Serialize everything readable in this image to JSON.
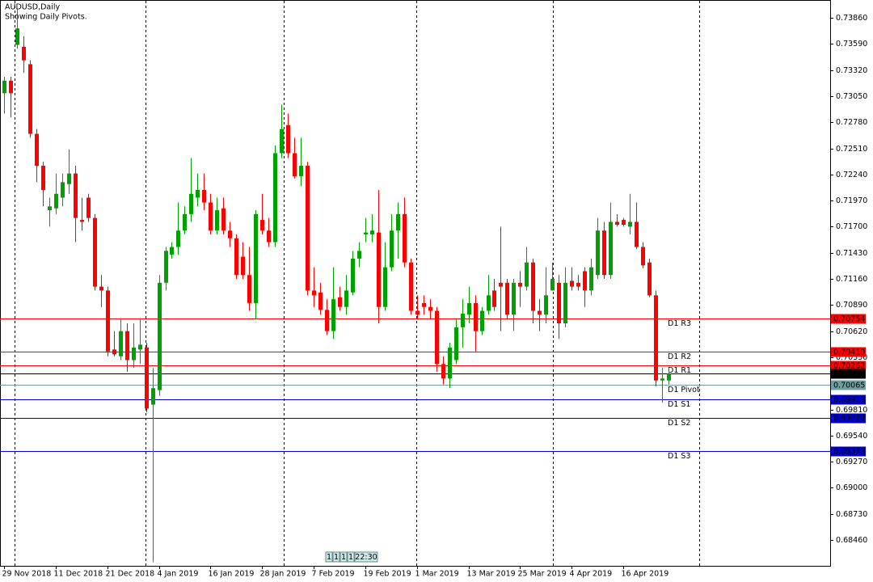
{
  "chart_data": {
    "type": "candlestick",
    "title": "AUDUSD,Daily",
    "subtitle": "Showing Daily Pivots.",
    "categories": [
      "29 Nov 2018",
      null,
      null,
      null,
      null,
      null,
      null,
      null,
      "11 Dec 2018",
      null,
      null,
      null,
      null,
      null,
      null,
      null,
      "21 Dec 2018",
      null,
      null,
      null,
      null,
      null,
      null,
      null,
      "4 Jan 2019",
      null,
      null,
      null,
      null,
      null,
      null,
      null,
      "16 Jan 2019",
      null,
      null,
      null,
      null,
      null,
      null,
      null,
      "28 Jan 2019",
      null,
      null,
      null,
      null,
      null,
      null,
      null,
      "7 Feb 2019",
      null,
      null,
      null,
      null,
      null,
      null,
      null,
      "19 Feb 2019",
      null,
      null,
      null,
      null,
      null,
      null,
      null,
      "1 Mar 2019",
      null,
      null,
      null,
      null,
      null,
      null,
      null,
      "13 Mar 2019",
      null,
      null,
      null,
      null,
      null,
      null,
      null,
      "25 Mar 2019",
      null,
      null,
      null,
      null,
      null,
      null,
      null,
      "4 Apr 2019",
      null,
      null,
      null,
      null,
      null,
      null,
      null,
      "16 Apr 2019",
      null,
      null,
      null,
      null,
      null,
      null,
      null
    ],
    "open": [
      0.7308,
      0.7321,
      0.7358,
      0.7356,
      0.7338,
      0.7266,
      0.7233,
      0.7187,
      0.7189,
      0.72,
      0.7214,
      0.7225,
      0.7177,
      0.72,
      0.7179,
      0.7108,
      0.7104,
      0.7043,
      0.7036,
      0.7062,
      0.7032,
      0.7043,
      0.7045,
      0.6986,
      0.7001,
      0.7112,
      0.7141,
      0.7149,
      0.7166,
      0.7183,
      0.72,
      0.7208,
      0.7195,
      0.7166,
      0.7189,
      0.7166,
      0.7158,
      0.7139,
      0.712,
      0.7091,
      0.7177,
      0.7166,
      0.7154,
      0.7246,
      0.7275,
      0.7246,
      0.7222,
      0.7233,
      0.7104,
      0.7102,
      0.7084,
      0.7062,
      0.7097,
      0.7087,
      0.7102,
      0.7137,
      0.7162,
      0.7162,
      0.7164,
      0.7087,
      0.7128,
      0.7166,
      0.7183,
      0.7133,
      0.7083,
      0.7091,
      0.7087,
      0.7083,
      0.7028,
      0.7013,
      0.7032,
      0.7066,
      0.7079,
      0.7091,
      0.7062,
      0.7083,
      0.7104,
      0.7112,
      0.7112,
      0.7079,
      0.7112,
      0.7108,
      0.7133,
      0.7083,
      0.7079,
      0.7104,
      0.7112,
      0.707,
      0.7114,
      0.7112,
      0.7124,
      0.7104,
      0.712,
      0.7166,
      0.712,
      0.7175,
      0.7177,
      0.717,
      0.7175,
      0.7149,
      0.7133,
      0.7099,
      0.7011,
      0.7011
    ],
    "high": [
      0.7325,
      0.7325,
      0.7396,
      0.7367,
      0.7342,
      0.7271,
      0.7237,
      0.72,
      0.7225,
      0.7225,
      0.725,
      0.7233,
      0.72,
      0.7204,
      0.7183,
      0.712,
      0.7108,
      0.7062,
      0.7074,
      0.707,
      0.707,
      0.7074,
      0.705,
      0.7024,
      0.712,
      0.7149,
      0.7154,
      0.7195,
      0.7191,
      0.7241,
      0.7225,
      0.7225,
      0.7204,
      0.72,
      0.72,
      0.7175,
      0.7162,
      0.7154,
      0.7149,
      0.7187,
      0.7204,
      0.7179,
      0.7254,
      0.7296,
      0.7287,
      0.7262,
      0.7262,
      0.7237,
      0.7128,
      0.7112,
      0.7095,
      0.7128,
      0.7108,
      0.712,
      0.7145,
      0.7154,
      0.7179,
      0.7183,
      0.7208,
      0.7154,
      0.7183,
      0.7195,
      0.72,
      0.7137,
      0.7099,
      0.7099,
      0.7095,
      0.7087,
      0.7036,
      0.705,
      0.7074,
      0.7095,
      0.7108,
      0.7099,
      0.7087,
      0.712,
      0.7116,
      0.717,
      0.7116,
      0.7116,
      0.7124,
      0.7149,
      0.7137,
      0.7095,
      0.7128,
      0.7133,
      0.712,
      0.7128,
      0.7128,
      0.712,
      0.7128,
      0.7137,
      0.7179,
      0.7175,
      0.7195,
      0.7183,
      0.7179,
      0.7204,
      0.7195,
      0.7154,
      0.7137,
      0.7104,
      0.7024,
      0.7024
    ],
    "low": [
      0.7287,
      0.7283,
      0.7354,
      0.7329,
      0.7262,
      0.7216,
      0.7191,
      0.717,
      0.7183,
      0.7191,
      0.7204,
      0.7154,
      0.7166,
      0.7175,
      0.7104,
      0.7087,
      0.7036,
      0.7036,
      0.7032,
      0.702,
      0.7024,
      0.7028,
      0.6978,
      0.6823,
      0.6995,
      0.7104,
      0.7137,
      0.7141,
      0.7162,
      0.7175,
      0.7191,
      0.7187,
      0.7162,
      0.7162,
      0.7162,
      0.7149,
      0.7116,
      0.7116,
      0.7083,
      0.7074,
      0.7162,
      0.7149,
      0.7149,
      0.7241,
      0.7241,
      0.722,
      0.7212,
      0.7099,
      0.7087,
      0.7079,
      0.7058,
      0.7054,
      0.7083,
      0.7079,
      0.7099,
      0.7128,
      0.7154,
      0.7154,
      0.707,
      0.7083,
      0.7124,
      0.7137,
      0.7128,
      0.7079,
      0.7074,
      0.7079,
      0.7074,
      0.702,
      0.7007,
      0.7003,
      0.7028,
      0.7045,
      0.707,
      0.7041,
      0.7058,
      0.7079,
      0.7083,
      0.7062,
      0.7074,
      0.7062,
      0.7087,
      0.7104,
      0.707,
      0.7062,
      0.707,
      0.7104,
      0.7054,
      0.7066,
      0.7104,
      0.7104,
      0.7087,
      0.7099,
      0.7116,
      0.7116,
      0.7116,
      0.717,
      0.717,
      0.7162,
      0.7147,
      0.7127,
      0.7097,
      0.7005,
      0.6988,
      0.7007
    ],
    "close": [
      0.7321,
      0.7308,
      0.7375,
      0.7342,
      0.7266,
      0.7233,
      0.7208,
      0.7191,
      0.7204,
      0.7216,
      0.7225,
      0.7179,
      0.7175,
      0.7179,
      0.7108,
      0.7104,
      0.7041,
      0.7038,
      0.7062,
      0.7032,
      0.7045,
      0.7048,
      0.6982,
      0.7003,
      0.7112,
      0.7145,
      0.7149,
      0.7166,
      0.7183,
      0.7204,
      0.7208,
      0.7195,
      0.7166,
      0.7187,
      0.7166,
      0.7158,
      0.712,
      0.712,
      0.7091,
      0.7183,
      0.7166,
      0.7154,
      0.7246,
      0.7271,
      0.7246,
      0.7222,
      0.7233,
      0.7104,
      0.7099,
      0.7084,
      0.7062,
      0.7095,
      0.7087,
      0.7104,
      0.7137,
      0.7145,
      0.7164,
      0.7166,
      0.7087,
      0.7128,
      0.7166,
      0.7183,
      0.7133,
      0.7083,
      0.7079,
      0.7087,
      0.7083,
      0.7028,
      0.7013,
      0.7045,
      0.7066,
      0.708,
      0.7091,
      0.7062,
      0.7083,
      0.7099,
      0.7087,
      0.7108,
      0.7079,
      0.7112,
      0.7108,
      0.7133,
      0.7083,
      0.7079,
      0.7099,
      0.7116,
      0.707,
      0.7112,
      0.7108,
      0.7108,
      0.7104,
      0.7128,
      0.7166,
      0.712,
      0.7175,
      0.7172,
      0.7172,
      0.7175,
      0.7149,
      0.713,
      0.7099,
      0.7011,
      0.7013,
      0.7018
    ],
    "up_color": "#00a000",
    "down_color": "#ff0000",
    "ylim": [
      0.68193,
      0.74044
    ],
    "yticks": [
      {
        "value": 0.7386,
        "label": "0.73860"
      },
      {
        "value": 0.7359,
        "label": "0.73590"
      },
      {
        "value": 0.7332,
        "label": "0.73320"
      },
      {
        "value": 0.7305,
        "label": "0.73050"
      },
      {
        "value": 0.7278,
        "label": "0.72780"
      },
      {
        "value": 0.7251,
        "label": "0.72510"
      },
      {
        "value": 0.7224,
        "label": "0.72240"
      },
      {
        "value": 0.7197,
        "label": "0.71970"
      },
      {
        "value": 0.717,
        "label": "0.71700"
      },
      {
        "value": 0.7143,
        "label": "0.71430"
      },
      {
        "value": 0.7116,
        "label": "0.71160"
      },
      {
        "value": 0.7089,
        "label": "0.70890"
      },
      {
        "value": 0.7062,
        "label": "0.70620"
      },
      {
        "value": 0.7035,
        "label": "0.70350"
      },
      {
        "value": 0.6981,
        "label": "0.69810"
      },
      {
        "value": 0.6954,
        "label": "0.69540"
      },
      {
        "value": 0.6927,
        "label": "0.69270"
      },
      {
        "value": 0.69,
        "label": "0.69000"
      },
      {
        "value": 0.6873,
        "label": "0.68730"
      },
      {
        "value": 0.6846,
        "label": "0.68460"
      }
    ],
    "levels": [
      {
        "name": "D1 R3",
        "value": 0.70754,
        "color": "#ff0000"
      },
      {
        "name": "D1 R2",
        "value": 0.7041,
        "value_label": "0.70410",
        "color": "#ff0000"
      },
      {
        "name": "D1 R1",
        "value": 0.70262,
        "color": "#ff0000"
      },
      {
        "value": 0.70179,
        "color": "#000000"
      },
      {
        "name": "D1 Pivot",
        "value": 0.70065,
        "color": "#6e9ea0"
      },
      {
        "name": "D1 S1",
        "value": 0.69918,
        "color": "#0000cd"
      },
      {
        "name": "D1 S2",
        "value": 0.69722,
        "color": "#0000cd"
      },
      {
        "name": "D1 S3",
        "value": 0.69378,
        "color": "#0000cd"
      }
    ],
    "scroll_bar": [
      "1",
      "1",
      "1",
      "1",
      "22:30"
    ]
  }
}
